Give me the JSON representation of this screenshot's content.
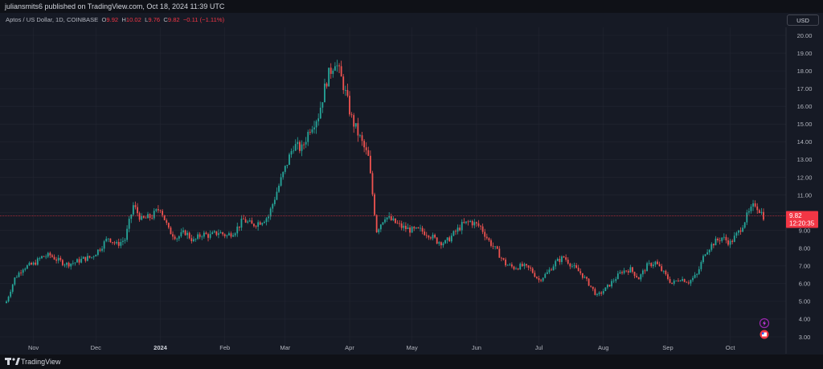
{
  "header": {
    "published": "juliansmits6 published on TradingView.com, Oct 18, 2024 11:39 UTC"
  },
  "legend": {
    "symbol": "Aptos / US Dollar, 1D, COINBASE",
    "o_label": "O",
    "o_value": "9.92",
    "h_label": "H",
    "h_value": "10.02",
    "l_label": "L",
    "l_value": "9.76",
    "c_label": "C",
    "c_value": "9.82",
    "change": "−0.11 (−1.11%)"
  },
  "currency_button": "USD",
  "price_label": {
    "price": "9.82",
    "countdown": "12:20:35"
  },
  "footer": {
    "brand": "TradingView"
  },
  "colors": {
    "background": "#161a25",
    "grid": "#232632",
    "up": "#26a69a",
    "down": "#ef5350",
    "text": "#b2b5be",
    "price_line": "#f23645"
  },
  "icons": [
    "lightning-icon",
    "flag-icon",
    "tradingview-logo-icon"
  ],
  "chart_data": {
    "type": "candlestick",
    "title": "Aptos / US Dollar, 1D, COINBASE",
    "xlabel": "",
    "ylabel": "",
    "ylim": [
      3.0,
      20.0
    ],
    "y_ticks": [
      "3.00",
      "4.00",
      "5.00",
      "6.00",
      "7.00",
      "8.00",
      "9.00",
      "10.00",
      "11.00",
      "12.00",
      "13.00",
      "14.00",
      "15.00",
      "16.00",
      "17.00",
      "18.00",
      "19.00",
      "20.00"
    ],
    "x_ticks": [
      "Nov",
      "Dec",
      "2024",
      "Feb",
      "Mar",
      "Apr",
      "May",
      "Jun",
      "Jul",
      "Aug",
      "Sep",
      "Oct"
    ],
    "grid": true,
    "last_price": 9.82,
    "series": [
      {
        "name": "",
        "x": [
          "2023-10-19",
          "2023-10-23",
          "2023-10-27",
          "2023-11-01",
          "2023-11-05",
          "2023-11-09",
          "2023-11-13",
          "2023-11-17",
          "2023-11-21",
          "2023-11-25",
          "2023-11-29",
          "2023-12-03",
          "2023-12-07",
          "2023-12-11",
          "2023-12-15",
          "2023-12-19",
          "2023-12-23",
          "2023-12-28",
          "2024-01-01",
          "2024-01-05",
          "2024-01-09",
          "2024-01-13",
          "2024-01-17",
          "2024-01-21",
          "2024-01-25",
          "2024-01-29",
          "2024-02-02",
          "2024-02-06",
          "2024-02-10",
          "2024-02-14",
          "2024-02-18",
          "2024-02-22",
          "2024-02-26",
          "2024-03-01",
          "2024-03-05",
          "2024-03-09",
          "2024-03-13",
          "2024-03-17",
          "2024-03-21",
          "2024-03-25",
          "2024-03-29",
          "2024-04-02",
          "2024-04-06",
          "2024-04-10",
          "2024-04-14",
          "2024-04-18",
          "2024-04-22",
          "2024-04-26",
          "2024-05-01",
          "2024-05-05",
          "2024-05-09",
          "2024-05-13",
          "2024-05-17",
          "2024-05-21",
          "2024-05-25",
          "2024-05-29",
          "2024-06-03",
          "2024-06-07",
          "2024-06-11",
          "2024-06-15",
          "2024-06-19",
          "2024-06-23",
          "2024-06-27",
          "2024-07-01",
          "2024-07-05",
          "2024-07-09",
          "2024-07-13",
          "2024-07-17",
          "2024-07-21",
          "2024-07-25",
          "2024-07-29",
          "2024-08-02",
          "2024-08-06",
          "2024-08-10",
          "2024-08-14",
          "2024-08-18",
          "2024-08-22",
          "2024-08-26",
          "2024-08-30",
          "2024-09-03",
          "2024-09-07",
          "2024-09-11",
          "2024-09-15",
          "2024-09-19",
          "2024-09-23",
          "2024-09-27",
          "2024-10-01",
          "2024-10-05",
          "2024-10-09",
          "2024-10-13",
          "2024-10-17"
        ],
        "close": [
          5.0,
          6.3,
          6.9,
          7.1,
          7.5,
          7.6,
          7.3,
          7.1,
          7.2,
          7.4,
          7.5,
          8.0,
          8.6,
          8.2,
          8.5,
          10.4,
          9.6,
          9.8,
          10.3,
          9.0,
          8.6,
          8.9,
          8.4,
          8.8,
          8.7,
          8.9,
          8.7,
          9.0,
          9.6,
          9.3,
          9.5,
          9.8,
          11.2,
          12.5,
          13.8,
          13.6,
          14.8,
          15.5,
          17.5,
          18.6,
          17.2,
          15.3,
          14.2,
          13.1,
          9.0,
          9.8,
          9.5,
          9.2,
          9.0,
          9.0,
          8.8,
          8.4,
          8.3,
          8.8,
          9.3,
          9.5,
          9.2,
          8.4,
          7.8,
          7.1,
          6.9,
          7.0,
          6.8,
          6.2,
          6.6,
          7.2,
          7.5,
          7.0,
          6.6,
          6.0,
          5.3,
          5.7,
          6.2,
          6.7,
          6.8,
          6.3,
          7.0,
          7.2,
          6.6,
          6.0,
          6.3,
          6.1,
          6.5,
          7.8,
          8.3,
          8.6,
          8.3,
          8.9,
          9.8,
          10.5,
          9.82
        ]
      }
    ]
  }
}
